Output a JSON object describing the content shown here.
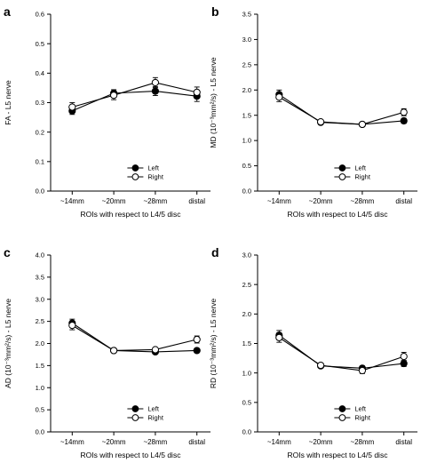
{
  "chart_data": [
    {
      "type": "line",
      "panel": "a",
      "ylabel": "FA - L5 nerve",
      "xlabel": "ROIs with respect to L4/5 disc",
      "categories": [
        "~14mm",
        "~20mm",
        "~28mm",
        "distal"
      ],
      "ylim": [
        0,
        0.6
      ],
      "yticks": [
        "0.0",
        "0.1",
        "0.2",
        "0.3",
        "0.4",
        "0.5",
        "0.6"
      ],
      "legend_position": "bottom-right",
      "series": [
        {
          "name": "Left",
          "marker": "filled",
          "values": [
            0.272,
            0.332,
            0.339,
            0.322
          ],
          "errors": [
            0.012,
            0.012,
            0.015,
            0.018
          ]
        },
        {
          "name": "Right",
          "marker": "open",
          "values": [
            0.285,
            0.325,
            0.368,
            0.335
          ],
          "errors": [
            0.015,
            0.015,
            0.017,
            0.018
          ]
        }
      ]
    },
    {
      "type": "line",
      "panel": "b",
      "ylabel": "MD (10⁻³mm²/s) - L5 nerve",
      "xlabel": "ROIs with respect to L4/5 disc",
      "categories": [
        "~14mm",
        "~20mm",
        "~28mm",
        "distal"
      ],
      "ylim": [
        0,
        3.5
      ],
      "yticks": [
        "0.0",
        "0.5",
        "1.0",
        "1.5",
        "2.0",
        "2.5",
        "3.0",
        "3.5"
      ],
      "legend_position": "bottom-right",
      "series": [
        {
          "name": "Left",
          "marker": "filled",
          "values": [
            1.91,
            1.36,
            1.32,
            1.39
          ],
          "errors": [
            0.09,
            0.03,
            0.03,
            0.05
          ]
        },
        {
          "name": "Right",
          "marker": "open",
          "values": [
            1.86,
            1.37,
            1.32,
            1.56
          ],
          "errors": [
            0.09,
            0.03,
            0.04,
            0.07
          ]
        }
      ]
    },
    {
      "type": "line",
      "panel": "c",
      "ylabel": "AD (10⁻³mm²/s) - L5 nerve",
      "xlabel": "ROIs with respect to L4/5 disc",
      "categories": [
        "~14mm",
        "~20mm",
        "~28mm",
        "distal"
      ],
      "ylim": [
        0,
        4.0
      ],
      "yticks": [
        "0.0",
        "0.5",
        "1.0",
        "1.5",
        "2.0",
        "2.5",
        "3.0",
        "3.5",
        "4.0"
      ],
      "legend_position": "bottom-right",
      "series": [
        {
          "name": "Left",
          "marker": "filled",
          "values": [
            2.46,
            1.84,
            1.81,
            1.84
          ],
          "errors": [
            0.09,
            0.03,
            0.04,
            0.04
          ]
        },
        {
          "name": "Right",
          "marker": "open",
          "values": [
            2.41,
            1.84,
            1.86,
            2.09
          ],
          "errors": [
            0.1,
            0.03,
            0.04,
            0.08
          ]
        }
      ]
    },
    {
      "type": "line",
      "panel": "d",
      "ylabel": "RD (10⁻³mm²/s) - L5 nerve",
      "xlabel": "ROIs with respect to L4/5 disc",
      "categories": [
        "~14mm",
        "~20mm",
        "~28mm",
        "distal"
      ],
      "ylim": [
        0,
        3.0
      ],
      "yticks": [
        "0.0",
        "0.5",
        "1.0",
        "1.5",
        "2.0",
        "2.5",
        "3.0"
      ],
      "legend_position": "bottom-right",
      "series": [
        {
          "name": "Left",
          "marker": "filled",
          "values": [
            1.64,
            1.12,
            1.08,
            1.16
          ],
          "errors": [
            0.08,
            0.03,
            0.04,
            0.05
          ]
        },
        {
          "name": "Right",
          "marker": "open",
          "values": [
            1.6,
            1.13,
            1.04,
            1.28
          ],
          "errors": [
            0.08,
            0.03,
            0.05,
            0.07
          ]
        }
      ]
    }
  ],
  "colors": {
    "axis": "#000000",
    "left_marker": "#000000",
    "right_marker_fill": "#ffffff"
  }
}
